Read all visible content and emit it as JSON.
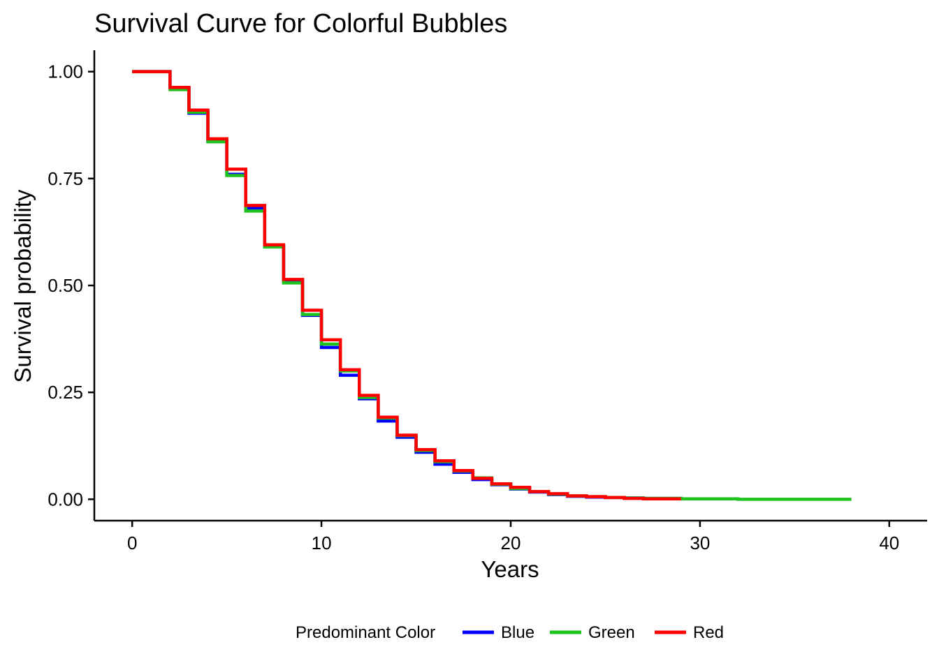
{
  "chart_data": {
    "type": "line",
    "step": true,
    "title": "Survival Curve for Colorful Bubbles",
    "xlabel": "Years",
    "ylabel": "Survival probability",
    "xlim": [
      -2,
      42
    ],
    "ylim": [
      -0.05,
      1.05
    ],
    "x_ticks": [
      0,
      10,
      20,
      30,
      40
    ],
    "x_tick_labels": [
      "0",
      "10",
      "20",
      "30",
      "40"
    ],
    "y_ticks": [
      0,
      0.25,
      0.5,
      0.75,
      1.0
    ],
    "y_tick_labels": [
      "0.00",
      "0.25",
      "0.50",
      "0.75",
      "1.00"
    ],
    "grid": false,
    "legend": {
      "title": "Predominant Color",
      "position": "bottom"
    },
    "series": [
      {
        "name": "Blue",
        "color": "#0000FF",
        "x": [
          0,
          2,
          3,
          4,
          5,
          6,
          7,
          8,
          9,
          10,
          11,
          12,
          13,
          14,
          15,
          16,
          17,
          18,
          19,
          20,
          21,
          22,
          23,
          24,
          25,
          26,
          27,
          28,
          29
        ],
        "y": [
          1.0,
          0.962,
          0.903,
          0.838,
          0.76,
          0.68,
          0.593,
          0.51,
          0.43,
          0.355,
          0.29,
          0.235,
          0.183,
          0.145,
          0.11,
          0.082,
          0.063,
          0.046,
          0.034,
          0.024,
          0.017,
          0.011,
          0.007,
          0.005,
          0.004,
          0.003,
          0.002,
          0.002,
          0.001
        ]
      },
      {
        "name": "Green",
        "color": "#1FC21F",
        "x": [
          0,
          2,
          3,
          4,
          5,
          6,
          7,
          8,
          9,
          10,
          11,
          12,
          13,
          14,
          15,
          16,
          17,
          18,
          19,
          20,
          21,
          22,
          23,
          24,
          25,
          26,
          27,
          28,
          29,
          30,
          31,
          32,
          33,
          34,
          35,
          36,
          37,
          38
        ],
        "y": [
          1.0,
          0.958,
          0.905,
          0.836,
          0.757,
          0.674,
          0.59,
          0.506,
          0.432,
          0.363,
          0.3,
          0.238,
          0.19,
          0.149,
          0.114,
          0.088,
          0.066,
          0.05,
          0.035,
          0.025,
          0.018,
          0.012,
          0.008,
          0.006,
          0.004,
          0.003,
          0.002,
          0.002,
          0.001,
          0.001,
          0.001,
          0.0,
          0.0,
          0.0,
          0.0,
          0.0,
          0.0,
          0.0
        ]
      },
      {
        "name": "Red",
        "color": "#FF0000",
        "x": [
          0,
          2,
          3,
          4,
          5,
          6,
          7,
          8,
          9,
          10,
          11,
          12,
          13,
          14,
          15,
          16,
          17,
          18,
          19,
          20,
          21,
          22,
          23,
          24,
          25,
          26,
          27,
          28,
          29
        ],
        "y": [
          1.0,
          0.963,
          0.91,
          0.843,
          0.772,
          0.687,
          0.595,
          0.514,
          0.442,
          0.373,
          0.303,
          0.243,
          0.192,
          0.15,
          0.116,
          0.09,
          0.067,
          0.049,
          0.036,
          0.028,
          0.018,
          0.013,
          0.008,
          0.006,
          0.004,
          0.002,
          0.001,
          0.001,
          0.001
        ]
      }
    ]
  }
}
